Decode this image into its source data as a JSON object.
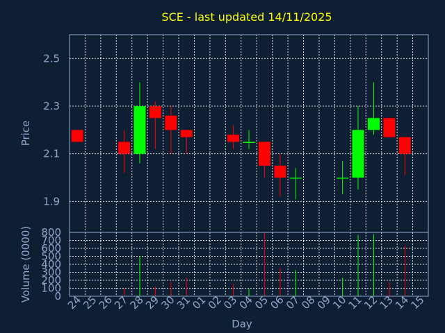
{
  "chart_data": {
    "type": "candlestick",
    "title": "SCE - last updated 14/11/2025",
    "xlabel": "Day",
    "price_ylabel": "Price",
    "volume_ylabel": "Volume (0000)",
    "categories": [
      "24",
      "25",
      "26",
      "27",
      "28",
      "29",
      "30",
      "31",
      "01",
      "02",
      "03",
      "04",
      "05",
      "06",
      "07",
      "08",
      "09",
      "10",
      "11",
      "12",
      "13",
      "14",
      "15"
    ],
    "price_ylim": [
      1.77,
      2.6
    ],
    "price_ticks": [
      "1.9",
      "2.1",
      "2.3",
      "2.5"
    ],
    "volume_ylim": [
      0,
      800
    ],
    "volume_ticks": [
      "0",
      "100",
      "200",
      "300",
      "400",
      "500",
      "600",
      "700",
      "800"
    ],
    "up_color": "#00ff00",
    "down_color": "#ff0000",
    "grid": true,
    "candles": [
      {
        "day": "24",
        "open": 2.2,
        "high": 2.2,
        "low": 2.15,
        "close": 2.15,
        "volume": 0
      },
      {
        "day": "27",
        "open": 2.15,
        "high": 2.2,
        "low": 2.02,
        "close": 2.1,
        "volume": 100
      },
      {
        "day": "28",
        "open": 2.1,
        "high": 2.4,
        "low": 2.06,
        "close": 2.3,
        "volume": 500
      },
      {
        "day": "29",
        "open": 2.3,
        "high": 2.32,
        "low": 2.12,
        "close": 2.25,
        "volume": 120
      },
      {
        "day": "30",
        "open": 2.26,
        "high": 2.3,
        "low": 2.1,
        "close": 2.2,
        "volume": 180
      },
      {
        "day": "31",
        "open": 2.2,
        "high": 2.2,
        "low": 2.1,
        "close": 2.17,
        "volume": 230
      },
      {
        "day": "03",
        "open": 2.18,
        "high": 2.22,
        "low": 2.12,
        "close": 2.15,
        "volume": 150
      },
      {
        "day": "04",
        "open": 2.15,
        "high": 2.2,
        "low": 2.12,
        "close": 2.15,
        "volume": 90
      },
      {
        "day": "05",
        "open": 2.15,
        "high": 2.15,
        "low": 2.0,
        "close": 2.05,
        "volume": 800
      },
      {
        "day": "06",
        "open": 2.05,
        "high": 2.1,
        "low": 1.92,
        "close": 2.0,
        "volume": 350
      },
      {
        "day": "07",
        "open": 2.0,
        "high": 2.04,
        "low": 1.91,
        "close": 2.0,
        "volume": 330
      },
      {
        "day": "10",
        "open": 2.0,
        "high": 2.07,
        "low": 1.93,
        "close": 2.0,
        "volume": 230
      },
      {
        "day": "11",
        "open": 2.0,
        "high": 2.3,
        "low": 1.95,
        "close": 2.2,
        "volume": 770
      },
      {
        "day": "12",
        "open": 2.2,
        "high": 2.4,
        "low": 2.18,
        "close": 2.25,
        "volume": 780
      },
      {
        "day": "13",
        "open": 2.25,
        "high": 2.25,
        "low": 2.17,
        "close": 2.17,
        "volume": 180
      },
      {
        "day": "14",
        "open": 2.17,
        "high": 2.17,
        "low": 2.01,
        "close": 2.1,
        "volume": 640
      }
    ]
  }
}
